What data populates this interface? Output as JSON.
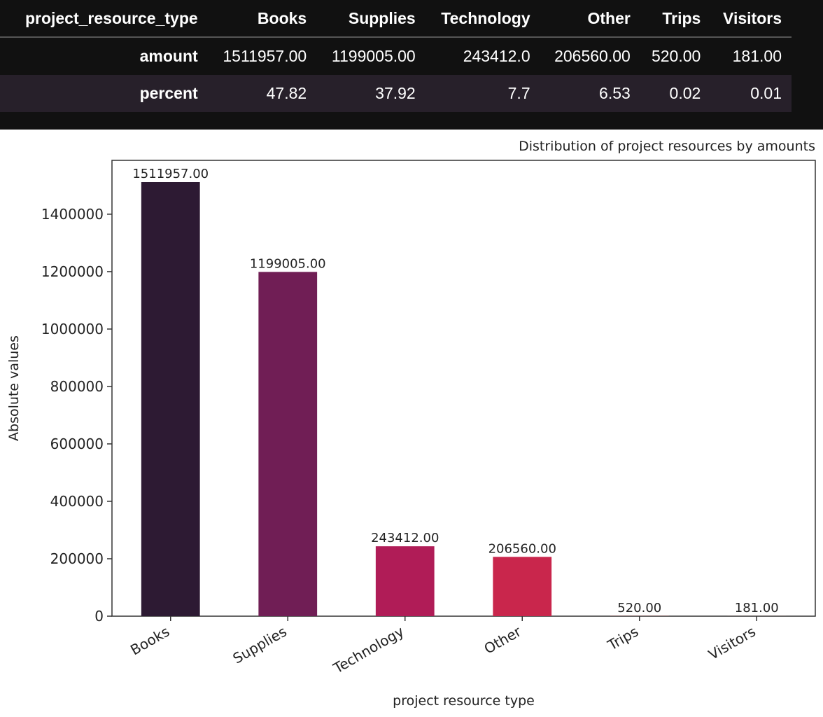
{
  "table": {
    "index_header": "project_resource_type",
    "columns": [
      "Books",
      "Supplies",
      "Technology",
      "Other",
      "Trips",
      "Visitors"
    ],
    "rows": [
      {
        "label": "amount",
        "values": [
          "1511957.00",
          "1199005.00",
          "243412.0",
          "206560.00",
          "520.00",
          "181.00"
        ]
      },
      {
        "label": "percent",
        "values": [
          "47.82",
          "37.92",
          "7.7",
          "6.53",
          "0.02",
          "0.01"
        ]
      }
    ]
  },
  "chart_data": {
    "type": "bar",
    "title": "Distribution of project resources by amounts",
    "xlabel": "project resource type",
    "ylabel": "Absolute values",
    "categories": [
      "Books",
      "Supplies",
      "Technology",
      "Other",
      "Trips",
      "Visitors"
    ],
    "values": [
      1511957.0,
      1199005.0,
      243412.0,
      206560.0,
      520.0,
      181.0
    ],
    "value_labels": [
      "1511957.00",
      "1199005.00",
      "243412.00",
      "206560.00",
      "520.00",
      "181.00"
    ],
    "yticks": [
      "0",
      "200000",
      "400000",
      "600000",
      "800000",
      "1000000",
      "1200000",
      "1400000"
    ],
    "ylim": [
      0,
      1587555
    ],
    "bar_colors": [
      "#2d1a33",
      "#701e55",
      "#b01c57",
      "#c9264c",
      "#d8474a",
      "#e0604a"
    ],
    "grid": false,
    "legend": "none"
  }
}
